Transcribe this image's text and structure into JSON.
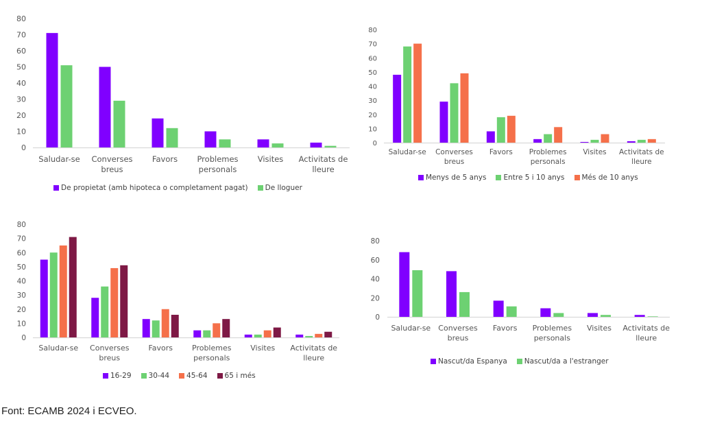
{
  "colors": {
    "purple": "#8000FF",
    "green": "#6DD172",
    "orange": "#F5704A",
    "maroon": "#7E1945",
    "axis": "#d9d9d9",
    "text": "#555555"
  },
  "source_note": "Font: ECAMB 2024 i ECVEO.",
  "chart_data": [
    {
      "type": "bar",
      "title": "",
      "xlabel": "",
      "ylabel": "",
      "categories": [
        "Saludar-se",
        "Converses breus",
        "Favors",
        "Problemes personals",
        "Visites",
        "Activitats de lleure"
      ],
      "category_lines": [
        [
          "Saludar-se"
        ],
        [
          "Converses",
          "breus"
        ],
        [
          "Favors"
        ],
        [
          "Problemes",
          "personals"
        ],
        [
          "Visites"
        ],
        [
          "Activitats de",
          "lleure"
        ]
      ],
      "ylim": [
        0,
        80
      ],
      "yticks": [
        0,
        10,
        20,
        30,
        40,
        50,
        60,
        70,
        80
      ],
      "grid": false,
      "legend_position": "bottom",
      "series": [
        {
          "name": "De propietat (amb hipoteca o completament pagat)",
          "color_key": "purple",
          "values": [
            71,
            50,
            18,
            10,
            5,
            3
          ]
        },
        {
          "name": "De lloguer",
          "color_key": "green",
          "values": [
            51,
            29,
            12,
            5,
            2.5,
            1
          ]
        }
      ]
    },
    {
      "type": "bar",
      "title": "",
      "xlabel": "",
      "ylabel": "",
      "categories": [
        "Saludar-se",
        "Converses breus",
        "Favors",
        "Problemes personals",
        "Visites",
        "Activitats de lleure"
      ],
      "category_lines": [
        [
          "Saludar-se"
        ],
        [
          "Converses",
          "breus"
        ],
        [
          "Favors"
        ],
        [
          "Problemes",
          "personals"
        ],
        [
          "Visites"
        ],
        [
          "Activitats de",
          "lleure"
        ]
      ],
      "ylim": [
        0,
        80
      ],
      "yticks": [
        0,
        10,
        20,
        30,
        40,
        50,
        60,
        70,
        80
      ],
      "grid": false,
      "legend_position": "bottom",
      "series": [
        {
          "name": "Menys de 5 anys",
          "color_key": "purple",
          "values": [
            48,
            29,
            8,
            2.5,
            0.5,
            1
          ]
        },
        {
          "name": "Entre 5 i 10 anys",
          "color_key": "green",
          "values": [
            68,
            42,
            18,
            6,
            2,
            2
          ]
        },
        {
          "name": "Més de 10 anys",
          "color_key": "orange",
          "values": [
            70,
            49,
            19,
            11,
            6,
            2.5
          ]
        }
      ]
    },
    {
      "type": "bar",
      "title": "",
      "xlabel": "",
      "ylabel": "",
      "categories": [
        "Saludar-se",
        "Converses breus",
        "Favors",
        "Problemes personals",
        "Visites",
        "Activitats de lleure"
      ],
      "category_lines": [
        [
          "Saludar-se"
        ],
        [
          "Converses",
          "breus"
        ],
        [
          "Favors"
        ],
        [
          "Problemes",
          "personals"
        ],
        [
          "Visites"
        ],
        [
          "Activitats de",
          "lleure"
        ]
      ],
      "ylim": [
        0,
        80
      ],
      "yticks": [
        0,
        10,
        20,
        30,
        40,
        50,
        60,
        70,
        80
      ],
      "grid": false,
      "legend_position": "bottom",
      "series": [
        {
          "name": "16-29",
          "color_key": "purple",
          "values": [
            55,
            28,
            13,
            5,
            2,
            2
          ]
        },
        {
          "name": "30-44",
          "color_key": "green",
          "values": [
            60,
            36,
            12,
            5,
            2,
            1
          ]
        },
        {
          "name": "45-64",
          "color_key": "orange",
          "values": [
            65,
            49,
            20,
            10,
            5,
            2.5
          ]
        },
        {
          "name": "65 i més",
          "color_key": "maroon",
          "values": [
            71,
            51,
            16,
            13,
            7,
            4
          ]
        }
      ]
    },
    {
      "type": "bar",
      "title": "",
      "xlabel": "",
      "ylabel": "",
      "categories": [
        "Saludar-se",
        "Converses breus",
        "Favors",
        "Problemes personals",
        "Visites",
        "Activitats de lleure"
      ],
      "category_lines": [
        [
          "Saludar-se"
        ],
        [
          "Converses",
          "breus"
        ],
        [
          "Favors"
        ],
        [
          "Problemes",
          "personals"
        ],
        [
          "Visites"
        ],
        [
          "Activitats de",
          "lleure"
        ]
      ],
      "ylim": [
        0,
        80
      ],
      "yticks": [
        0,
        20,
        40,
        60,
        80
      ],
      "grid": false,
      "legend_position": "bottom",
      "series": [
        {
          "name": "Nascut/da Espanya",
          "color_key": "purple",
          "values": [
            68,
            48,
            17,
            9,
            4,
            2
          ]
        },
        {
          "name": "Nascut/da a l'estranger",
          "color_key": "green",
          "values": [
            49,
            26,
            11,
            4,
            2,
            0.5
          ]
        }
      ]
    }
  ]
}
